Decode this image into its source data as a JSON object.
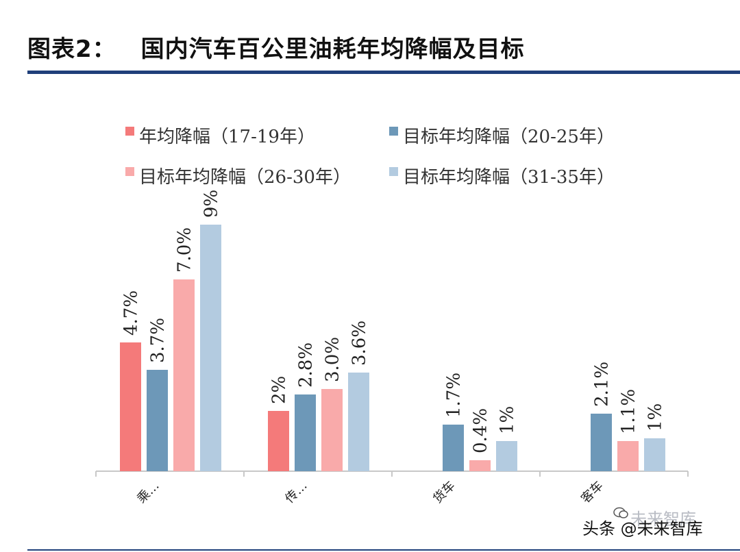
{
  "header": {
    "figure_label": "图表2：",
    "title": "国内汽车百公里油耗年均降幅及目标"
  },
  "watermark": {
    "main": "头条 @未来智库",
    "faded": "未来智库"
  },
  "colors": {
    "rule": "#1f3f7a",
    "series": [
      "#f47a7a",
      "#6d98b8",
      "#f9aaaa",
      "#b3cbe0"
    ],
    "axis": "#c8c8c8"
  },
  "chart_data": {
    "type": "bar",
    "title": "国内汽车百公里油耗年均降幅及目标",
    "categories": [
      "乘…",
      "传…",
      "货车",
      "客车"
    ],
    "series": [
      {
        "name": "年均降幅（17-19年）",
        "values": [
          4.7,
          2.2,
          null,
          null
        ],
        "labels": [
          "4.7%",
          "2%",
          "",
          ""
        ]
      },
      {
        "name": "目标年均降幅（20-25年）",
        "values": [
          3.7,
          2.8,
          1.7,
          2.1
        ],
        "labels": [
          "3.7%",
          "2.8%",
          "1.7%",
          "2.1%"
        ]
      },
      {
        "name": "目标年均降幅（26-30年）",
        "values": [
          7.0,
          3.0,
          0.4,
          1.1
        ],
        "labels": [
          "7.0%",
          "3.0%",
          "0.4%",
          "1.1%"
        ]
      },
      {
        "name": "目标年均降幅（31-35年）",
        "values": [
          9.0,
          3.6,
          1.1,
          1.2
        ],
        "labels": [
          "9%",
          "3.6%",
          "1%",
          "1%"
        ]
      }
    ],
    "xlabel": "",
    "ylabel": "",
    "ylim": [
      0,
      9.0
    ],
    "legend_position": "top"
  }
}
